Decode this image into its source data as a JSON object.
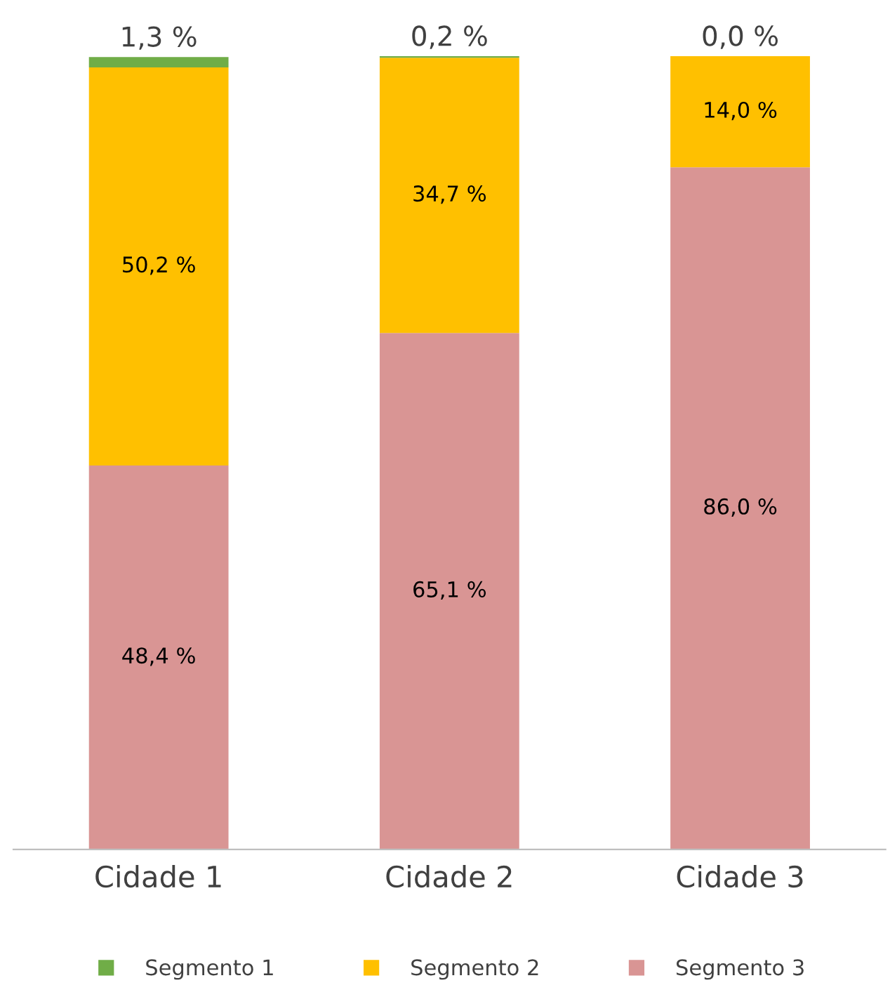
{
  "chart_data": {
    "type": "bar",
    "stacked": true,
    "categories": [
      "Cidade 1",
      "Cidade 2",
      "Cidade 3"
    ],
    "series": [
      {
        "name": "Segmento 3",
        "color": "#d99594",
        "values": [
          48.4,
          65.1,
          86.0
        ],
        "value_labels": [
          "48,4 %",
          "65,1 %",
          "86,0 %"
        ]
      },
      {
        "name": "Segmento 2",
        "color": "#ffc000",
        "values": [
          50.2,
          34.7,
          14.0
        ],
        "value_labels": [
          "50,2 %",
          "34,7 %",
          "14,0 %"
        ]
      },
      {
        "name": "Segmento 1",
        "color": "#70ad47",
        "values": [
          1.3,
          0.2,
          0.0
        ],
        "value_labels": [
          "1,3 %",
          "0,2 %",
          "0,0 %"
        ]
      }
    ],
    "legend": "bottom",
    "grid": false,
    "tick_labels": "x"
  }
}
